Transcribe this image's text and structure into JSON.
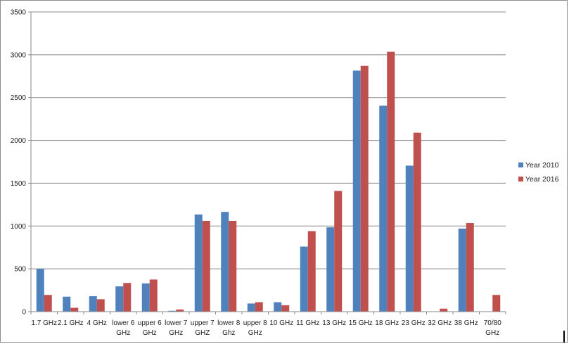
{
  "chart_data": {
    "type": "bar",
    "categories": [
      [
        "1.7 GHz"
      ],
      [
        "2.1 GHz"
      ],
      [
        "4 GHz"
      ],
      [
        "lower 6",
        "GHz"
      ],
      [
        "upper 6",
        "GHz"
      ],
      [
        "lower 7",
        "GHz"
      ],
      [
        "upper 7",
        "GHZ"
      ],
      [
        "lower 8",
        "Ghz"
      ],
      [
        "upper 8",
        "GHz"
      ],
      [
        "10 GHz"
      ],
      [
        "11 GHz"
      ],
      [
        "13 GHz"
      ],
      [
        "15 GHz"
      ],
      [
        "18 GHz"
      ],
      [
        "23 GHz"
      ],
      [
        "32 GHz"
      ],
      [
        "38 GHz"
      ],
      [
        "70/80",
        "GHz"
      ]
    ],
    "series": [
      {
        "name": "Year 2010",
        "color": "#4F81BD",
        "values": [
          500,
          175,
          180,
          295,
          330,
          10,
          1135,
          1165,
          95,
          110,
          760,
          985,
          2815,
          2405,
          1705,
          0,
          970,
          0
        ]
      },
      {
        "name": "Year 2016",
        "color": "#C0504D",
        "values": [
          195,
          45,
          145,
          335,
          375,
          25,
          1060,
          1060,
          110,
          75,
          940,
          1410,
          2870,
          3035,
          2090,
          35,
          1035,
          195
        ]
      }
    ],
    "ylim": [
      0,
      3500
    ],
    "yticks": [
      "0",
      "500",
      "1000",
      "1500",
      "2000",
      "2500",
      "3000",
      "3500"
    ],
    "grid": true,
    "legend_position": "right",
    "title": "",
    "xlabel": "",
    "ylabel": ""
  }
}
